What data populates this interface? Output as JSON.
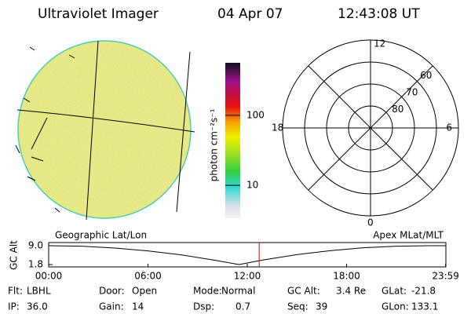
{
  "header": {
    "title": "Ultraviolet Imager",
    "date": "04 Apr 07",
    "time": "12:43:08 UT"
  },
  "chart_data": [
    {
      "type": "colorbar",
      "label": "photon cm⁻²s⁻¹",
      "log": true,
      "ylim": [
        3.4,
        560
      ],
      "yticks": [
        10,
        100
      ]
    },
    {
      "type": "polar",
      "theta_labels": [
        "12",
        "6",
        "0",
        "18"
      ],
      "rlim": [
        90,
        50
      ],
      "rticks": [
        80,
        70,
        60
      ]
    },
    {
      "type": "line",
      "ylabel": "GC Alt",
      "left_note": "Geographic Lat/Lon",
      "right_note": "Apex MLat/MLT",
      "x": [
        0,
        2,
        4,
        6,
        8,
        10,
        11.5,
        13,
        15,
        17,
        19,
        21,
        23,
        23.983
      ],
      "values": [
        9.0,
        8.8,
        8.1,
        7.0,
        5.5,
        3.5,
        1.8,
        3.6,
        5.6,
        7.1,
        8.2,
        8.8,
        9.0,
        9.0
      ],
      "color": "#000000",
      "marker_x": 12.72,
      "marker_color": "#e00000",
      "xlim": [
        0,
        24
      ],
      "ylim": [
        0.9,
        10.2
      ],
      "xticks": [
        {
          "value": 0,
          "label": "00:00"
        },
        {
          "value": 6,
          "label": "06:00"
        },
        {
          "value": 12,
          "label": "12:00"
        },
        {
          "value": 18,
          "label": "18:00"
        },
        {
          "value": 23.983,
          "label": "23:59"
        }
      ],
      "yticks": [
        {
          "value": 9,
          "label": "9.0"
        },
        1.8
      ]
    }
  ],
  "footer": {
    "rows": [
      [
        [
          "Flt:",
          "LBHL"
        ],
        [
          "Door:",
          "Open"
        ],
        [
          "Mode:",
          "Normal"
        ],
        [
          "GC Alt:",
          "3.4 Re"
        ],
        [
          "GLat:",
          "-21.8"
        ]
      ],
      [
        [
          "IP:",
          "36.0"
        ],
        [
          "Gain:",
          "14"
        ],
        [
          "Dsp:",
          "0.7"
        ],
        [
          "Seq:",
          "39"
        ],
        [
          "GLon:",
          "133.1"
        ]
      ]
    ]
  }
}
